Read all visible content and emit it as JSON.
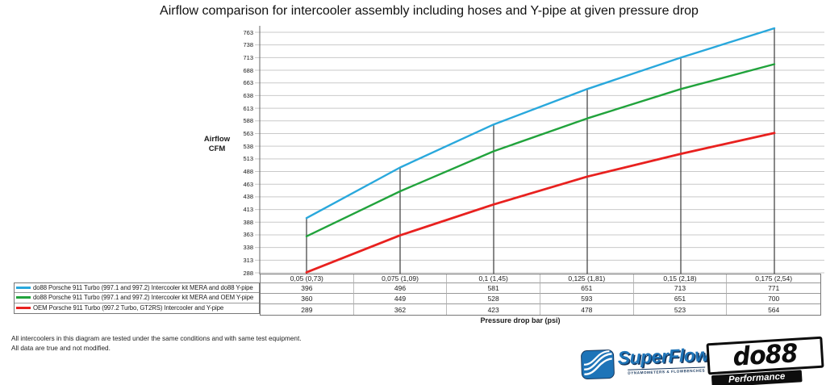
{
  "title": "Airflow comparison for intercooler assembly including hoses and Y-pipe at given pressure drop",
  "y_axis": {
    "title_lines": [
      "Airflow",
      "CFM"
    ]
  },
  "x_axis": {
    "title": "Pressure drop bar (psi)"
  },
  "chart_data": {
    "type": "line",
    "title": "Airflow comparison for intercooler assembly including hoses and Y-pipe at given pressure drop",
    "xlabel": "Pressure drop bar (psi)",
    "ylabel": "Airflow CFM",
    "ylim": [
      288,
      763
    ],
    "y_ticks": [
      763,
      738,
      713,
      688,
      663,
      638,
      613,
      588,
      563,
      538,
      513,
      488,
      463,
      438,
      413,
      388,
      363,
      338,
      313,
      288
    ],
    "grid": true,
    "drop_lines": true,
    "legend_position": "bottom-left table",
    "categories": [
      "0,05 (0,73)",
      "0,075 (1,09)",
      "0,1 (1,45)",
      "0,125 (1,81)",
      "0,15 (2,18)",
      "0,175 (2,54)"
    ],
    "series": [
      {
        "name": "do88 Porsche 911 Turbo (997.1 and 997.2) Intercooler kit MERA and do88 Y-pipe",
        "color": "#29A8DC",
        "values": [
          396,
          496,
          581,
          651,
          713,
          771
        ]
      },
      {
        "name": "do88 Porsche 911 Turbo (997.1 and 997.2) Intercooler kit MERA and OEM Y-pipe",
        "color": "#21A33C",
        "values": [
          360,
          449,
          528,
          593,
          651,
          700
        ]
      },
      {
        "name": "OEM Porsche 911 Turbo (997.2 Turbo,  GT2RS) Intercooler and Y-pipe",
        "color": "#E8211F",
        "values": [
          289,
          362,
          423,
          478,
          523,
          564
        ]
      }
    ],
    "colors": {
      "gridline": "#c9c9c9",
      "drop_line": "#3a3a3a",
      "axis": "#666666"
    }
  },
  "footnotes": [
    "All intercoolers in this diagram are tested under the same conditions and with same test equipment.",
    "All data are true and not modified."
  ],
  "logos": {
    "superflow": {
      "name": "SuperFlow",
      "tagline": "DYNAMOMETERS & FLOWBENCHES"
    },
    "do88": {
      "name": "do88",
      "tagline": "Performance"
    }
  }
}
